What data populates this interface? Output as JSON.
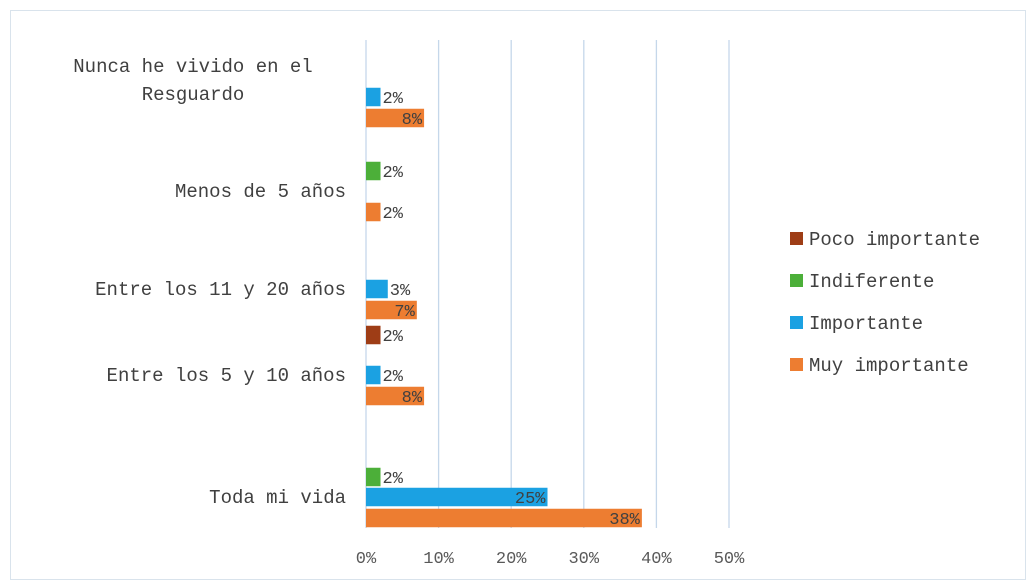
{
  "chart_data": {
    "type": "bar",
    "orientation": "horizontal",
    "categories": [
      "Toda mi vida",
      "Entre los 5 y 10 años",
      "Entre los 11 y 20 años",
      "Menos de 5 años",
      "Nunca he vivido en el Resguardo"
    ],
    "category_lines": [
      [
        "Toda mi vida"
      ],
      [
        "Entre los 5 y 10 años"
      ],
      [
        "Entre los 11 y 20 años"
      ],
      [
        "Menos de 5 años"
      ],
      [
        "Nunca he vivido en el",
        "Resguardo"
      ]
    ],
    "series": [
      {
        "name": "Muy importante",
        "color": "#ed7d31",
        "values": [
          38,
          8,
          7,
          2,
          8
        ],
        "labels": [
          "38%",
          "8%",
          "7%",
          "2%",
          "8%"
        ]
      },
      {
        "name": "Importante",
        "color": "#1ba1e2",
        "values": [
          25,
          2,
          3,
          null,
          2
        ],
        "labels": [
          "25%",
          "2%",
          "3%",
          "",
          "2%"
        ]
      },
      {
        "name": "Indiferente",
        "color": "#4caf39",
        "values": [
          2,
          null,
          null,
          2,
          null
        ],
        "labels": [
          "2%",
          "",
          "",
          "2%",
          ""
        ]
      },
      {
        "name": "Poco importante",
        "color": "#9e3d16",
        "values": [
          null,
          2,
          null,
          null,
          null
        ],
        "labels": [
          "",
          "2%",
          "",
          "",
          ""
        ]
      }
    ],
    "legend_order": [
      "Poco importante",
      "Indiferente",
      "Importante",
      "Muy importante"
    ],
    "xlim": [
      0,
      50
    ],
    "xticks": [
      0,
      10,
      20,
      30,
      40,
      50
    ],
    "xtick_labels": [
      "0%",
      "10%",
      "20%",
      "30%",
      "40%",
      "50%"
    ],
    "grid": true,
    "gridline_color": "#c5d7ea",
    "legend_position": "right",
    "title": "",
    "xlabel": "",
    "ylabel": ""
  }
}
